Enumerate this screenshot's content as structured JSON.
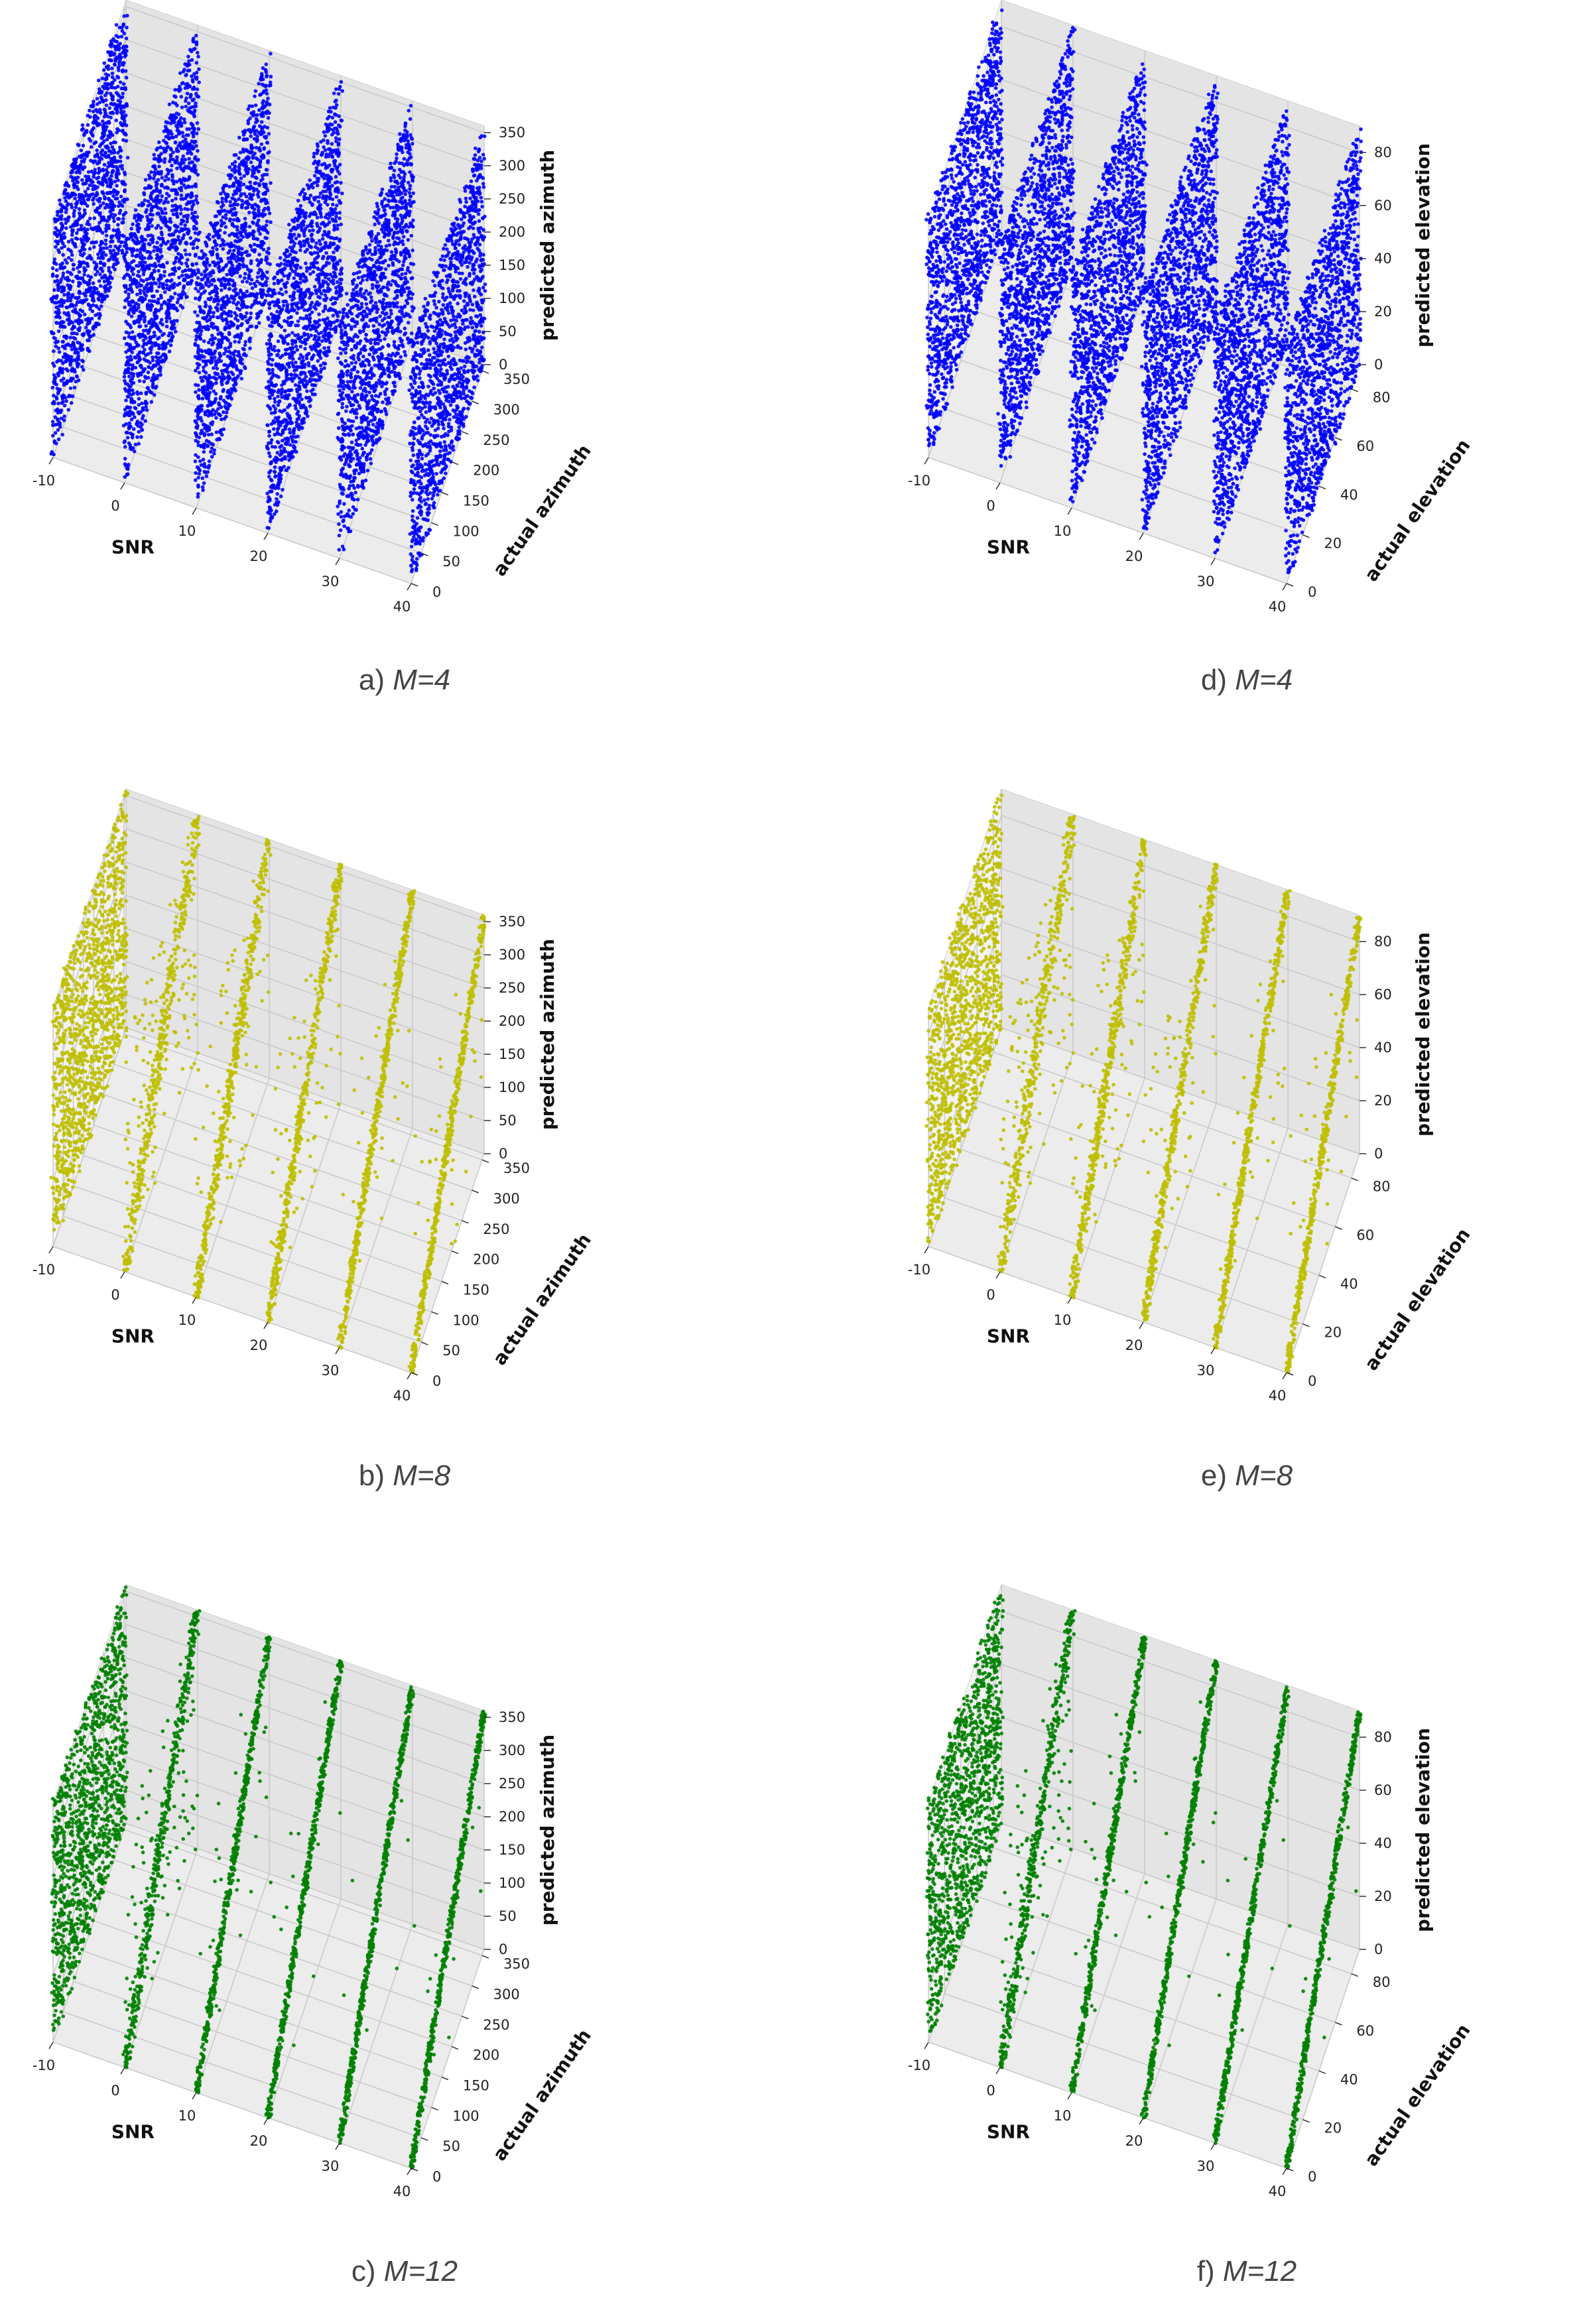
{
  "colors": {
    "blue": "#0000ff",
    "yellow": "#bfbf00",
    "green": "#008000"
  },
  "chart_data": [
    {
      "type": "scatter",
      "panel": "a",
      "caption_label": "a)",
      "caption_value": "M=4",
      "color": "#0000ff",
      "spread": "dense",
      "xlabel": "SNR",
      "ylabel": "actual azimuth",
      "zlabel": "predicted azimuth",
      "xlim": [
        -10,
        40
      ],
      "ylim": [
        0,
        360
      ],
      "zlim": [
        0,
        360
      ],
      "xticks": [
        -10,
        0,
        10,
        20,
        30,
        40
      ],
      "yticks": [
        0,
        50,
        100,
        150,
        200,
        250,
        300,
        350
      ],
      "zticks": [
        0,
        50,
        100,
        150,
        200,
        250,
        300,
        350
      ],
      "snr_levels": [
        -10,
        0,
        10,
        20,
        30,
        40
      ]
    },
    {
      "type": "scatter",
      "panel": "b",
      "caption_label": "b)",
      "caption_value": "M=8",
      "color": "#bfbf00",
      "spread": "medium",
      "xlabel": "SNR",
      "ylabel": "actual azimuth",
      "zlabel": "predicted azimuth",
      "xlim": [
        -10,
        40
      ],
      "ylim": [
        0,
        360
      ],
      "zlim": [
        0,
        360
      ],
      "xticks": [
        -10,
        0,
        10,
        20,
        30,
        40
      ],
      "yticks": [
        0,
        50,
        100,
        150,
        200,
        250,
        300,
        350
      ],
      "zticks": [
        0,
        50,
        100,
        150,
        200,
        250,
        300,
        350
      ],
      "snr_levels": [
        -10,
        0,
        10,
        20,
        30,
        40
      ]
    },
    {
      "type": "scatter",
      "panel": "c",
      "caption_label": "c)",
      "caption_value": "M=12",
      "color": "#008000",
      "spread": "tight",
      "xlabel": "SNR",
      "ylabel": "actual azimuth",
      "zlabel": "predicted azimuth",
      "xlim": [
        -10,
        40
      ],
      "ylim": [
        0,
        360
      ],
      "zlim": [
        0,
        360
      ],
      "xticks": [
        -10,
        0,
        10,
        20,
        30,
        40
      ],
      "yticks": [
        0,
        50,
        100,
        150,
        200,
        250,
        300,
        350
      ],
      "zticks": [
        0,
        50,
        100,
        150,
        200,
        250,
        300,
        350
      ],
      "snr_levels": [
        -10,
        0,
        10,
        20,
        30,
        40
      ]
    },
    {
      "type": "scatter",
      "panel": "d",
      "caption_label": "d)",
      "caption_value": "M=4",
      "color": "#0000ff",
      "spread": "dense",
      "xlabel": "SNR",
      "ylabel": "actual elevation",
      "zlabel": "predicted elevation",
      "xlim": [
        -10,
        40
      ],
      "ylim": [
        0,
        90
      ],
      "zlim": [
        0,
        90
      ],
      "xticks": [
        -10,
        0,
        10,
        20,
        30,
        40
      ],
      "yticks": [
        0,
        20,
        40,
        60,
        80
      ],
      "zticks": [
        0,
        20,
        40,
        60,
        80
      ],
      "snr_levels": [
        -10,
        0,
        10,
        20,
        30,
        40
      ]
    },
    {
      "type": "scatter",
      "panel": "e",
      "caption_label": "e)",
      "caption_value": "M=8",
      "color": "#bfbf00",
      "spread": "medium",
      "xlabel": "SNR",
      "ylabel": "actual elevation",
      "zlabel": "predicted elevation",
      "xlim": [
        -10,
        40
      ],
      "ylim": [
        0,
        90
      ],
      "zlim": [
        0,
        90
      ],
      "xticks": [
        -10,
        0,
        10,
        20,
        30,
        40
      ],
      "yticks": [
        0,
        20,
        40,
        60,
        80
      ],
      "zticks": [
        0,
        20,
        40,
        60,
        80
      ],
      "snr_levels": [
        -10,
        0,
        10,
        20,
        30,
        40
      ]
    },
    {
      "type": "scatter",
      "panel": "f",
      "caption_label": "f)",
      "caption_value": "M=12",
      "color": "#008000",
      "spread": "tight",
      "xlabel": "SNR",
      "ylabel": "actual elevation",
      "zlabel": "predicted elevation",
      "xlim": [
        -10,
        40
      ],
      "ylim": [
        0,
        90
      ],
      "zlim": [
        0,
        90
      ],
      "xticks": [
        -10,
        0,
        10,
        20,
        30,
        40
      ],
      "yticks": [
        0,
        20,
        40,
        60,
        80
      ],
      "zticks": [
        0,
        20,
        40,
        60,
        80
      ],
      "snr_levels": [
        -10,
        0,
        10,
        20,
        30,
        40
      ]
    }
  ]
}
